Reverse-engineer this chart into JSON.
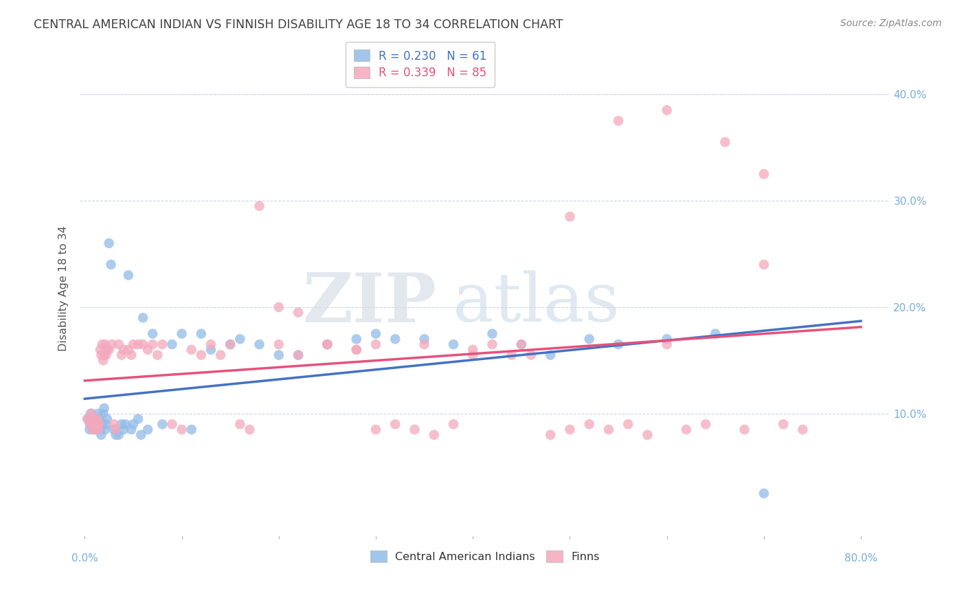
{
  "title": "CENTRAL AMERICAN INDIAN VS FINNISH DISABILITY AGE 18 TO 34 CORRELATION CHART",
  "source": "Source: ZipAtlas.com",
  "ylabel": "Disability Age 18 to 34",
  "xtick_labels": [
    "0.0%",
    "80.0%"
  ],
  "xtick_vals": [
    0.0,
    0.8
  ],
  "ytick_labels": [
    "10.0%",
    "20.0%",
    "30.0%",
    "40.0%"
  ],
  "ytick_vals": [
    0.1,
    0.2,
    0.3,
    0.4
  ],
  "ylim": [
    -0.015,
    0.45
  ],
  "xlim": [
    -0.005,
    0.83
  ],
  "legend_top_labels": [
    "R = 0.230   N = 61",
    "R = 0.339   N = 85"
  ],
  "legend_bottom_labels": [
    "Central American Indians",
    "Finns"
  ],
  "watermark_zip": "ZIP",
  "watermark_atlas": "atlas",
  "blue_color": "#92bce8",
  "pink_color": "#f4a8bc",
  "blue_line_color": "#4472c4",
  "pink_line_color": "#e8507a",
  "background_color": "#ffffff",
  "grid_color": "#ccd5e0",
  "title_color": "#404040",
  "axis_color": "#7aaddd",
  "blue_x": [
    0.003,
    0.005,
    0.006,
    0.007,
    0.008,
    0.009,
    0.01,
    0.011,
    0.012,
    0.013,
    0.014,
    0.015,
    0.016,
    0.017,
    0.018,
    0.019,
    0.02,
    0.021,
    0.022,
    0.023,
    0.025,
    0.027,
    0.03,
    0.032,
    0.035,
    0.038,
    0.04,
    0.042,
    0.045,
    0.048,
    0.05,
    0.055,
    0.058,
    0.06,
    0.065,
    0.07,
    0.08,
    0.09,
    0.1,
    0.11,
    0.12,
    0.13,
    0.15,
    0.16,
    0.18,
    0.2,
    0.22,
    0.25,
    0.28,
    0.3,
    0.32,
    0.35,
    0.38,
    0.42,
    0.45,
    0.48,
    0.52,
    0.55,
    0.6,
    0.65,
    0.7
  ],
  "blue_y": [
    0.095,
    0.085,
    0.09,
    0.1,
    0.095,
    0.085,
    0.09,
    0.095,
    0.085,
    0.09,
    0.1,
    0.095,
    0.085,
    0.08,
    0.09,
    0.1,
    0.105,
    0.085,
    0.09,
    0.095,
    0.26,
    0.24,
    0.085,
    0.08,
    0.08,
    0.09,
    0.085,
    0.09,
    0.23,
    0.085,
    0.09,
    0.095,
    0.08,
    0.19,
    0.085,
    0.175,
    0.09,
    0.165,
    0.175,
    0.085,
    0.175,
    0.16,
    0.165,
    0.17,
    0.165,
    0.155,
    0.155,
    0.165,
    0.17,
    0.175,
    0.17,
    0.17,
    0.165,
    0.175,
    0.165,
    0.155,
    0.17,
    0.165,
    0.17,
    0.175,
    0.025
  ],
  "pink_x": [
    0.003,
    0.005,
    0.006,
    0.007,
    0.008,
    0.009,
    0.01,
    0.011,
    0.012,
    0.013,
    0.014,
    0.015,
    0.016,
    0.017,
    0.018,
    0.019,
    0.02,
    0.021,
    0.022,
    0.023,
    0.025,
    0.028,
    0.03,
    0.032,
    0.035,
    0.038,
    0.04,
    0.045,
    0.048,
    0.05,
    0.055,
    0.06,
    0.065,
    0.07,
    0.075,
    0.08,
    0.09,
    0.1,
    0.11,
    0.12,
    0.13,
    0.14,
    0.15,
    0.16,
    0.17,
    0.18,
    0.2,
    0.22,
    0.25,
    0.28,
    0.3,
    0.32,
    0.34,
    0.36,
    0.38,
    0.4,
    0.42,
    0.44,
    0.46,
    0.48,
    0.5,
    0.52,
    0.54,
    0.56,
    0.58,
    0.6,
    0.62,
    0.64,
    0.66,
    0.68,
    0.7,
    0.72,
    0.74,
    0.5,
    0.55,
    0.6,
    0.3,
    0.35,
    0.4,
    0.45,
    0.2,
    0.22,
    0.25,
    0.28,
    0.7
  ],
  "pink_y": [
    0.095,
    0.09,
    0.1,
    0.095,
    0.085,
    0.09,
    0.095,
    0.085,
    0.09,
    0.095,
    0.085,
    0.09,
    0.16,
    0.155,
    0.165,
    0.15,
    0.155,
    0.165,
    0.155,
    0.16,
    0.16,
    0.165,
    0.09,
    0.085,
    0.165,
    0.155,
    0.16,
    0.16,
    0.155,
    0.165,
    0.165,
    0.165,
    0.16,
    0.165,
    0.155,
    0.165,
    0.09,
    0.085,
    0.16,
    0.155,
    0.165,
    0.155,
    0.165,
    0.09,
    0.085,
    0.295,
    0.2,
    0.195,
    0.165,
    0.16,
    0.085,
    0.09,
    0.085,
    0.08,
    0.09,
    0.155,
    0.165,
    0.155,
    0.155,
    0.08,
    0.085,
    0.09,
    0.085,
    0.09,
    0.08,
    0.165,
    0.085,
    0.09,
    0.355,
    0.085,
    0.325,
    0.09,
    0.085,
    0.285,
    0.375,
    0.385,
    0.165,
    0.165,
    0.16,
    0.165,
    0.165,
    0.155,
    0.165,
    0.16,
    0.24
  ]
}
